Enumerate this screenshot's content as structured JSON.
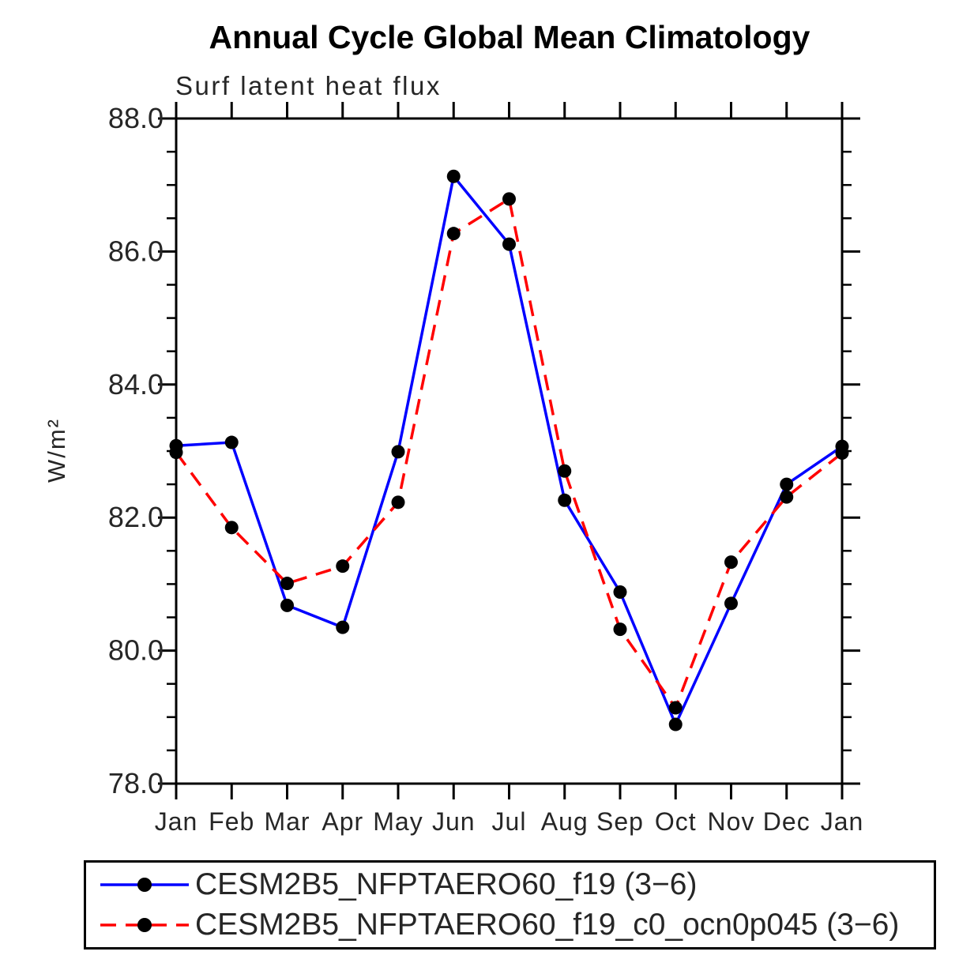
{
  "chart_data": {
    "type": "line",
    "title": "Annual Cycle Global Mean Climatology",
    "subtitle": "Surf latent heat flux",
    "ylabel": "W/m²",
    "x_tick_labels": [
      "Jan",
      "Feb",
      "Mar",
      "Apr",
      "May",
      "Jun",
      "Jul",
      "Aug",
      "Sep",
      "Oct",
      "Nov",
      "Dec",
      "Jan"
    ],
    "ylim": [
      78.0,
      88.0
    ],
    "yticks": [
      78.0,
      80.0,
      82.0,
      84.0,
      86.0,
      88.0
    ],
    "y_tick_format_example": "78.0",
    "y_minor_step": 0.5,
    "grid": false,
    "legend_position": "bottom",
    "axis_color": "#000000",
    "series": [
      {
        "name": "CESM2B5_NFPTAERO60_f19 (3−6)",
        "color": "#0000ff",
        "line_style": "solid",
        "marker": "filled-circle",
        "marker_color": "#000000",
        "values": [
          83.08,
          83.13,
          80.68,
          80.35,
          82.99,
          87.13,
          86.11,
          82.26,
          80.88,
          78.89,
          80.71,
          82.5,
          83.07
        ]
      },
      {
        "name": "CESM2B5_NFPTAERO60_f19_c0_ocn0p045 (3−6)",
        "color": "#ff0000",
        "line_style": "dashed",
        "marker": "filled-circle",
        "marker_color": "#000000",
        "values": [
          82.98,
          81.85,
          81.01,
          81.27,
          82.23,
          86.27,
          86.79,
          82.7,
          80.32,
          79.14,
          81.33,
          82.31,
          82.97
        ]
      }
    ]
  }
}
